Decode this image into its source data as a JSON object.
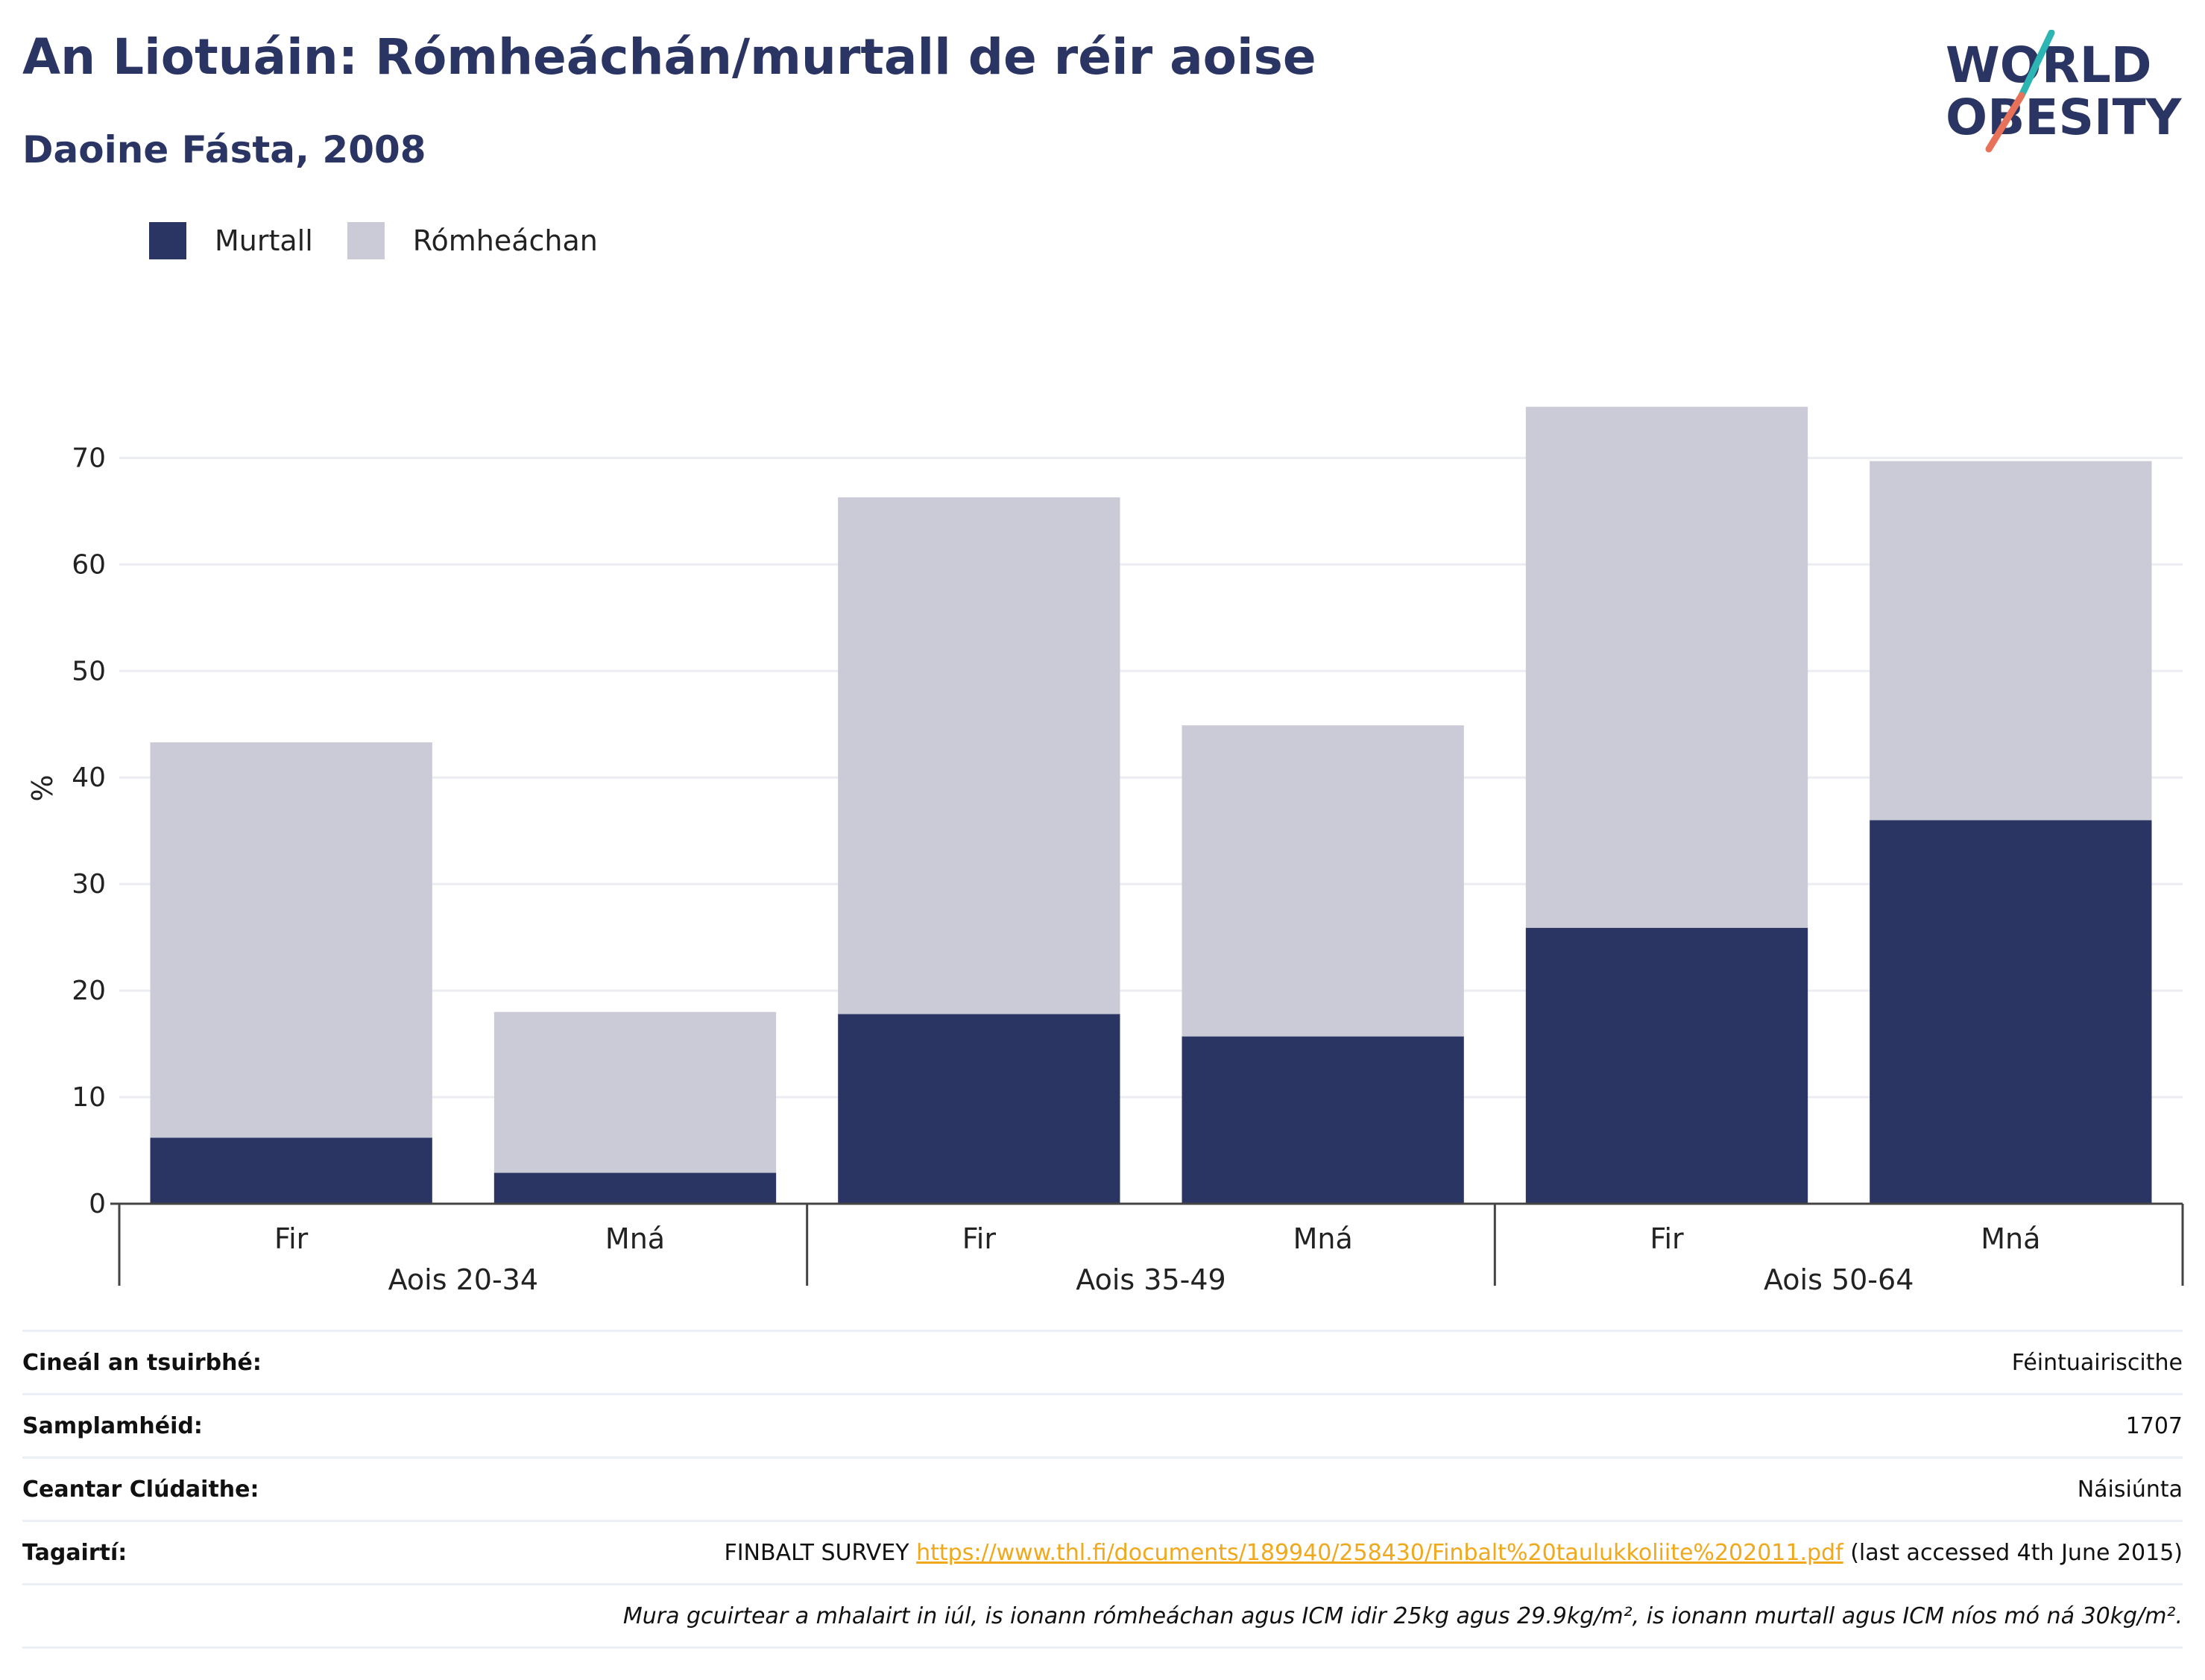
{
  "title": "An Liotuáin: Rómheáchán/murtall de réir aoise",
  "subtitle": "Daoine Fásta, 2008",
  "logo": {
    "line1": "WORLD",
    "line2": "OBESITY"
  },
  "colors": {
    "obese": "#2a3563",
    "overweight": "#cacbd7",
    "accent_teal": "#2cb5b3",
    "accent_coral": "#e8715a",
    "link": "#f0a81c"
  },
  "legend": [
    {
      "label": "Murtall",
      "color": "#2a3563"
    },
    {
      "label": "Rómheáchan",
      "color": "#cacbd7"
    }
  ],
  "chart_data": {
    "type": "bar",
    "stacked": true,
    "ylabel": "%",
    "ylim": [
      0,
      78
    ],
    "yticks": [
      0,
      10,
      20,
      30,
      40,
      50,
      60,
      70
    ],
    "grid": true,
    "legend_position": "top-left",
    "groups": [
      {
        "label": "Aois 20-34",
        "categories": [
          "Fir",
          "Mná"
        ]
      },
      {
        "label": "Aois 35-49",
        "categories": [
          "Fir",
          "Mná"
        ]
      },
      {
        "label": "Aois 50-64",
        "categories": [
          "Fir",
          "Mná"
        ]
      }
    ],
    "series": [
      {
        "name": "Murtall",
        "values": [
          6.2,
          2.9,
          17.8,
          15.7,
          25.9,
          36.0
        ]
      },
      {
        "name": "Rómheáchan",
        "values": [
          37.1,
          15.1,
          48.5,
          29.2,
          48.9,
          33.7
        ]
      }
    ]
  },
  "info": {
    "survey_type": {
      "label": "Cineál an tsuirbhé:",
      "value": "Féintuairiscithe"
    },
    "sample_size": {
      "label": "Samplamhéid:",
      "value": "1707"
    },
    "area": {
      "label": "Ceantar Clúdaithe:",
      "value": "Náisiúnta"
    },
    "references": {
      "label": "Tagairtí:",
      "prefix": "FINBALT SURVEY",
      "link": "https://www.thl.fi/documents/189940/258430/Finbalt%20taulukkoliite%202011.pdf",
      "suffix": "(last accessed 4th June 2015)"
    },
    "note": "Mura gcuirtear a mhalairt in iúl, is ionann rómheáchan agus ICM idir 25kg agus 29.9kg/m², is ionann murtall agus ICM níos mó ná 30kg/m²."
  }
}
